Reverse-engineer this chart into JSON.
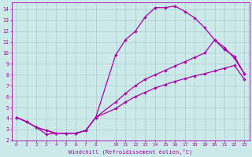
{
  "background_color": "#cceaea",
  "grid_color": "#aacccc",
  "line_color": "#aa00aa",
  "line_width": 0.9,
  "marker": "D",
  "marker_size": 2.2,
  "xlim": [
    -0.5,
    23.5
  ],
  "ylim": [
    2,
    14.6
  ],
  "xticks": [
    0,
    1,
    2,
    3,
    4,
    5,
    6,
    7,
    8,
    10,
    11,
    12,
    13,
    14,
    15,
    16,
    17,
    18,
    19,
    20,
    21,
    22,
    23
  ],
  "yticks": [
    2,
    3,
    4,
    5,
    6,
    7,
    8,
    9,
    10,
    11,
    12,
    13,
    14
  ],
  "xlabel": "Windchill (Refroidissement éolien,°C)",
  "curve1_x": [
    0,
    1,
    2,
    3,
    4,
    5,
    6,
    7,
    8,
    10,
    11,
    12,
    13,
    14,
    15,
    16,
    17,
    18,
    19,
    20,
    21,
    22,
    23
  ],
  "curve1_y": [
    4.1,
    3.7,
    3.2,
    2.55,
    2.65,
    2.65,
    2.65,
    2.9,
    4.1,
    9.8,
    11.2,
    12.0,
    13.3,
    14.15,
    14.15,
    14.3,
    13.8,
    13.2,
    12.3,
    11.2,
    10.3,
    9.7,
    8.1
  ],
  "curve2_x": [
    0,
    1,
    2,
    3,
    4,
    5,
    6,
    7,
    8,
    10,
    11,
    12,
    13,
    14,
    15,
    16,
    17,
    18,
    19,
    20,
    21,
    22,
    23
  ],
  "curve2_y": [
    4.1,
    3.7,
    3.2,
    2.9,
    2.65,
    2.65,
    2.65,
    2.9,
    4.1,
    5.5,
    6.3,
    7.0,
    7.6,
    8.0,
    8.4,
    8.8,
    9.2,
    9.6,
    10.0,
    11.2,
    10.5,
    9.5,
    8.1
  ],
  "curve3_x": [
    0,
    1,
    2,
    3,
    4,
    5,
    6,
    7,
    8,
    10,
    11,
    12,
    13,
    14,
    15,
    16,
    17,
    18,
    19,
    20,
    21,
    22,
    23
  ],
  "curve3_y": [
    4.1,
    3.7,
    3.2,
    2.9,
    2.65,
    2.65,
    2.65,
    2.9,
    4.1,
    4.9,
    5.5,
    6.0,
    6.4,
    6.8,
    7.1,
    7.4,
    7.65,
    7.9,
    8.1,
    8.35,
    8.6,
    8.85,
    7.6
  ]
}
